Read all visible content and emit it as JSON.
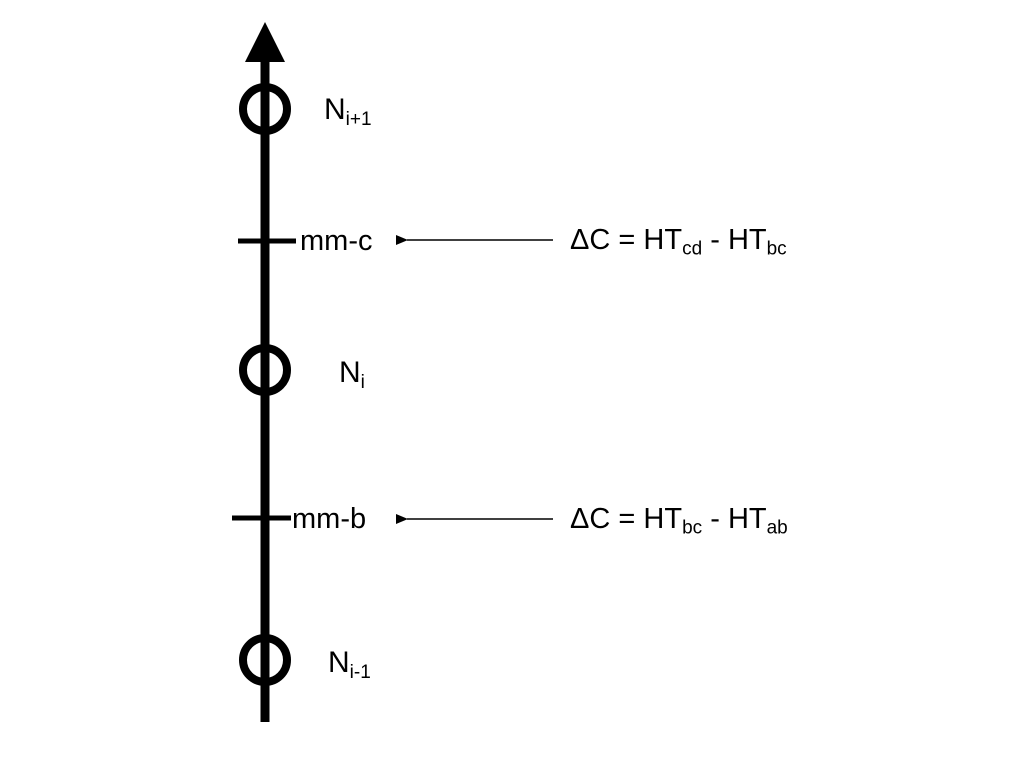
{
  "nodes": [
    {
      "id": "upper",
      "base": "N",
      "subscript": "i+1"
    },
    {
      "id": "middle",
      "base": "N",
      "subscript": "i"
    },
    {
      "id": "lower",
      "base": "N",
      "subscript": "i-1"
    }
  ],
  "markers": [
    {
      "id": "c",
      "label": "mm-c",
      "equation": {
        "lhs": "ΔC",
        "equals": "=",
        "term1_base": "HT",
        "term1_sub": "cd",
        "op": "-",
        "term2_base": "HT",
        "term2_sub": "bc"
      }
    },
    {
      "id": "b",
      "label": "mm-b",
      "equation": {
        "lhs": "ΔC",
        "equals": "=",
        "term1_base": "HT",
        "term1_sub": "bc",
        "op": "-",
        "term2_base": "HT",
        "term2_sub": "ab"
      }
    }
  ],
  "colors": {
    "stroke": "#000000",
    "background": "#ffffff"
  }
}
